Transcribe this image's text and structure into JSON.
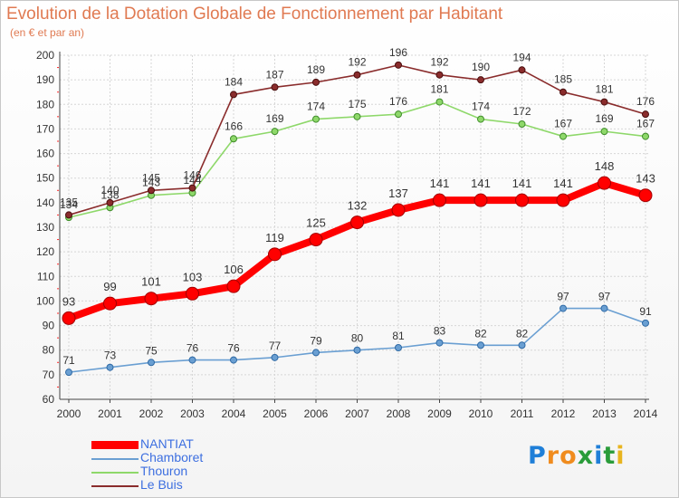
{
  "chart_data": {
    "type": "line",
    "title": "Evolution de la Dotation Globale de Fonctionnement par Habitant",
    "subtitle": "(en € et par an)",
    "xlabel": "",
    "ylabel": "",
    "ylim": [
      60,
      200
    ],
    "yticks": [
      60,
      70,
      80,
      90,
      100,
      110,
      120,
      130,
      140,
      150,
      160,
      170,
      180,
      190,
      200
    ],
    "grid": true,
    "legend_position": "bottom-left",
    "categories": [
      "2000",
      "2001",
      "2002",
      "2003",
      "2004",
      "2005",
      "2006",
      "2007",
      "2008",
      "2009",
      "2010",
      "2011",
      "2012",
      "2013",
      "2014"
    ],
    "series": [
      {
        "name": "NANTIAT",
        "color": "#ff0000",
        "values": [
          93,
          99,
          101,
          103,
          106,
          119,
          125,
          132,
          137,
          141,
          141,
          141,
          141,
          148,
          143
        ]
      },
      {
        "name": "Chamboret",
        "color": "#6a9fd2",
        "values": [
          71,
          73,
          75,
          76,
          76,
          77,
          79,
          80,
          81,
          83,
          82,
          82,
          97,
          97,
          91
        ]
      },
      {
        "name": "Thouron",
        "color": "#8ed86a",
        "values": [
          134,
          138,
          143,
          144,
          166,
          169,
          174,
          175,
          176,
          181,
          174,
          172,
          167,
          169,
          167
        ]
      },
      {
        "name": "Le Buis",
        "color": "#8a2c2c",
        "values": [
          135,
          140,
          145,
          146,
          184,
          187,
          189,
          192,
          196,
          192,
          190,
          194,
          185,
          181,
          176
        ]
      }
    ]
  },
  "logo": {
    "letters": [
      "P",
      "r",
      "o",
      "x",
      "i",
      "t",
      "i"
    ],
    "colors": [
      "#1f7fd8",
      "#f08c1e",
      "#f08c1e",
      "#2a9c3a",
      "#1f7fd8",
      "#2a9c3a",
      "#e8b41e"
    ]
  }
}
